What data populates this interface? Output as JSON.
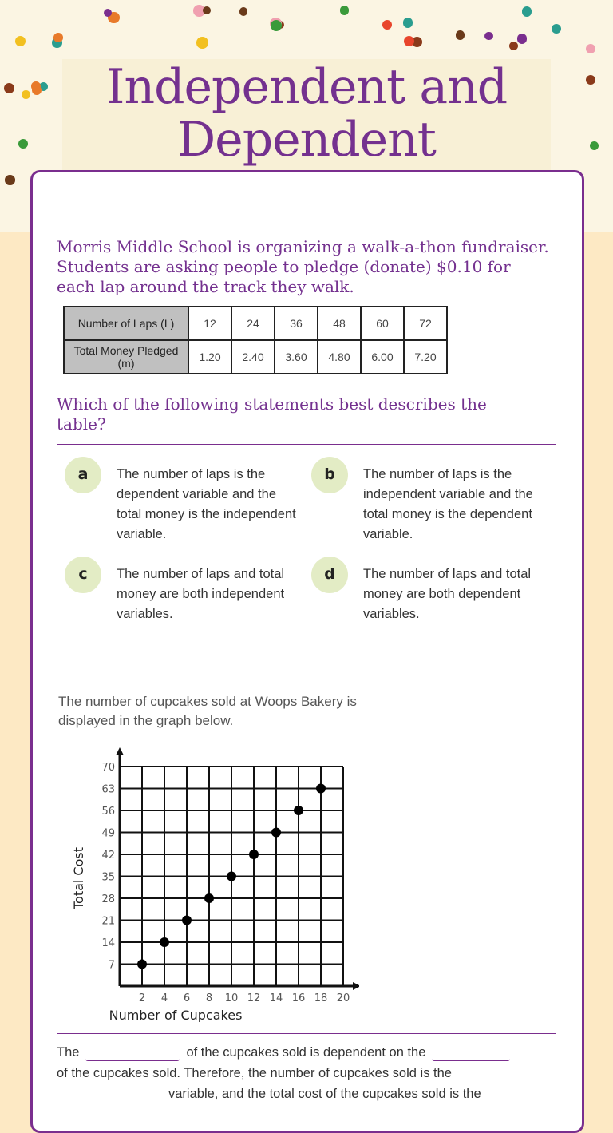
{
  "title": "Independent and Dependent Variables",
  "intro": "Morris Middle School is organizing a walk-a-thon fundraiser. Students are asking people to pledge (donate) $0.10 for each lap around the track they walk.",
  "table": {
    "row_headers": [
      "Number of Laps (L)",
      "Total Money Pledged (m)"
    ],
    "laps": [
      "12",
      "24",
      "36",
      "48",
      "60",
      "72"
    ],
    "money": [
      "1.20",
      "2.40",
      "3.60",
      "4.80",
      "6.00",
      "7.20"
    ]
  },
  "question": "Which of the following statements best describes the table?",
  "choices": [
    {
      "letter": "a",
      "text": "The number of laps is the dependent variable and the total money is the independent variable."
    },
    {
      "letter": "b",
      "text": "The number of laps is the independent variable and the total money is the dependent variable."
    },
    {
      "letter": "c",
      "text": "The number of laps and total money are both independent variables."
    },
    {
      "letter": "d",
      "text": "The number of laps and total money are both dependent variables."
    }
  ],
  "chart_caption": "The number of cupcakes sold at Woops Bakery is displayed in the graph below.",
  "chart_data": {
    "type": "scatter",
    "xlabel": "Number of Cupcakes",
    "ylabel": "Total Cost",
    "xlim": [
      0,
      20
    ],
    "ylim": [
      0,
      70
    ],
    "xticks": [
      2,
      4,
      6,
      8,
      10,
      12,
      14,
      16,
      18,
      20
    ],
    "yticks": [
      7,
      14,
      21,
      28,
      35,
      42,
      49,
      56,
      63,
      70
    ],
    "grid": true,
    "x": [
      2,
      4,
      6,
      8,
      10,
      12,
      14,
      16,
      18
    ],
    "y": [
      7,
      14,
      21,
      28,
      35,
      42,
      49,
      56,
      63
    ]
  },
  "fill_in": {
    "part1": "The",
    "part2": "of the cupcakes sold is dependent on the",
    "part3": "of the cupcakes sold. Therefore, the number of cupcakes sold is the",
    "part4": "variable, and the total cost of the cupcakes sold is the"
  },
  "colors": {
    "accent": "#74318f",
    "choice_bubble": "#e3ecc5",
    "page_bg": "#fde9c4"
  }
}
